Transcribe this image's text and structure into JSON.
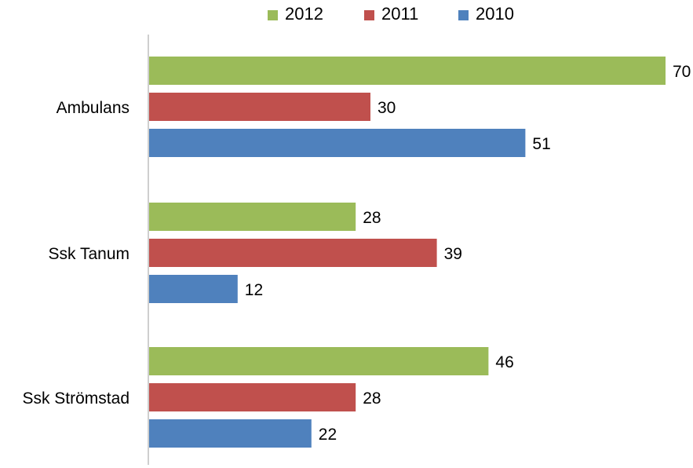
{
  "chart_data": {
    "type": "bar",
    "orientation": "horizontal",
    "categories": [
      "Ambulans",
      "Ssk Tanum",
      "Ssk Strömstad"
    ],
    "series": [
      {
        "name": "2012",
        "values": [
          70,
          28,
          46
        ],
        "color": "#9bbb59"
      },
      {
        "name": "2011",
        "values": [
          30,
          39,
          28
        ],
        "color": "#c0504d"
      },
      {
        "name": "2010",
        "values": [
          51,
          12,
          22
        ],
        "color": "#4f81bd"
      }
    ],
    "title": "",
    "xlabel": "",
    "ylabel": "",
    "xlim": [
      0,
      70
    ],
    "grid": false,
    "legend": "top",
    "data_labels": true
  }
}
